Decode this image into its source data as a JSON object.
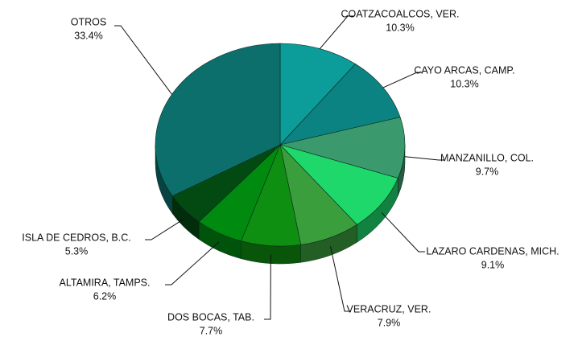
{
  "chart_data": {
    "type": "pie",
    "categories": [
      "COATZACOALCOS, VER.",
      "CAYO ARCAS, CAMP.",
      "MANZANILLO, COL.",
      "LAZARO CARDENAS, MICH.",
      "VERACRUZ, VER.",
      "DOS BOCAS, TAB.",
      "ALTAMIRA, TAMPS.",
      "ISLA DE CEDROS, B.C.",
      "OTROS"
    ],
    "values": [
      10.3,
      10.3,
      9.7,
      9.1,
      7.9,
      7.7,
      6.2,
      5.3,
      33.4
    ],
    "value_labels": [
      "10.3%",
      "10.3%",
      "9.7%",
      "9.1%",
      "7.9%",
      "7.7%",
      "6.2%",
      "5.3%",
      "33.4%"
    ],
    "colors": [
      "#0c9c99",
      "#0b8383",
      "#3a9a6e",
      "#1ed86c",
      "#3b9e3c",
      "#0f8f12",
      "#008a10",
      "#034a12",
      "#0c6f6c"
    ]
  }
}
